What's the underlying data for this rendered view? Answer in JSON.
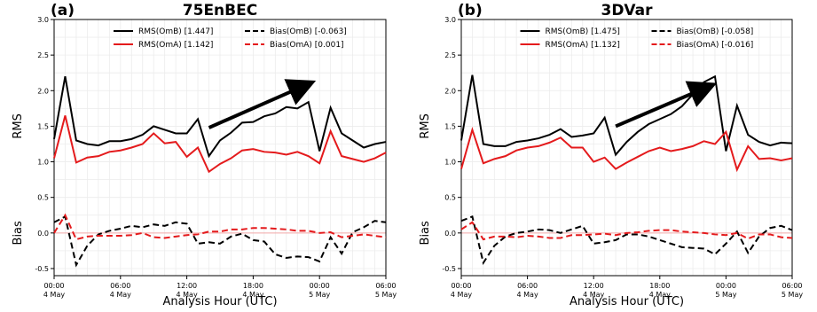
{
  "chart_data": [
    {
      "type": "line",
      "panel_label": "(a)",
      "title": "75EnBEC",
      "xlabel": "Analysis Hour (UTC)",
      "ylabel_top": "RMS",
      "ylabel_bottom": "Bias",
      "x_hours": [
        0,
        1,
        2,
        3,
        4,
        5,
        6,
        7,
        8,
        9,
        10,
        11,
        12,
        13,
        14,
        15,
        16,
        17,
        18,
        19,
        20,
        21,
        22,
        23,
        24,
        25,
        26,
        27,
        28,
        29,
        30
      ],
      "xticks": [
        {
          "hour": 0,
          "line1": "00:00",
          "line2": "4 May"
        },
        {
          "hour": 6,
          "line1": "06:00",
          "line2": "4 May"
        },
        {
          "hour": 12,
          "line1": "12:00",
          "line2": "4 May"
        },
        {
          "hour": 18,
          "line1": "18:00",
          "line2": "4 May"
        },
        {
          "hour": 24,
          "line1": "00:00",
          "line2": "5 May"
        },
        {
          "hour": 30,
          "line1": "06:00",
          "line2": "5 May"
        }
      ],
      "yticks": [
        "3.0",
        "2.5",
        "2.0",
        "1.5",
        "1.0",
        "0.5",
        "0.0",
        "-0.5"
      ],
      "ylim": [
        -0.6,
        3.0
      ],
      "grid": true,
      "legend_position": "top",
      "legend": [
        {
          "label": "RMS(OmB) [1.447]",
          "color": "#000000",
          "dashed": false
        },
        {
          "label": "Bias(OmB) [-0.063]",
          "color": "#000000",
          "dashed": true
        },
        {
          "label": "RMS(OmA) [1.142]",
          "color": "#e41a1c",
          "dashed": false
        },
        {
          "label": "Bias(OmA) [0.001]",
          "color": "#e41a1c",
          "dashed": true
        }
      ],
      "series": [
        {
          "name": "RMS(OmB) [1.447]",
          "color": "#000000",
          "dashed": false,
          "values": [
            1.32,
            2.2,
            1.3,
            1.25,
            1.23,
            1.29,
            1.29,
            1.32,
            1.38,
            1.5,
            1.45,
            1.4,
            1.4,
            1.6,
            1.08,
            1.3,
            1.41,
            1.55,
            1.56,
            1.64,
            1.68,
            1.77,
            1.75,
            1.84,
            1.15,
            1.76,
            1.4,
            1.3,
            1.2,
            1.25,
            1.28
          ]
        },
        {
          "name": "RMS(OmA) [1.142]",
          "color": "#e41a1c",
          "dashed": false,
          "values": [
            1.05,
            1.65,
            0.99,
            1.06,
            1.08,
            1.14,
            1.16,
            1.2,
            1.25,
            1.4,
            1.26,
            1.28,
            1.07,
            1.2,
            0.86,
            0.97,
            1.05,
            1.16,
            1.18,
            1.14,
            1.13,
            1.1,
            1.14,
            1.08,
            0.98,
            1.43,
            1.08,
            1.04,
            1.0,
            1.05,
            1.13
          ]
        },
        {
          "name": "Bias(OmB) [-0.063]",
          "color": "#000000",
          "dashed": true,
          "values": [
            0.15,
            0.23,
            -0.45,
            -0.18,
            -0.02,
            0.03,
            0.06,
            0.1,
            0.08,
            0.12,
            0.1,
            0.15,
            0.13,
            -0.15,
            -0.13,
            -0.15,
            -0.05,
            -0.01,
            -0.1,
            -0.12,
            -0.3,
            -0.35,
            -0.33,
            -0.34,
            -0.4,
            -0.06,
            -0.29,
            0.01,
            0.08,
            0.17,
            0.15
          ]
        },
        {
          "name": "Bias(OmA) [0.001]",
          "color": "#e41a1c",
          "dashed": true,
          "values": [
            0.0,
            0.25,
            -0.09,
            -0.05,
            -0.04,
            -0.04,
            -0.04,
            -0.03,
            0.0,
            -0.06,
            -0.07,
            -0.05,
            -0.03,
            -0.02,
            0.02,
            0.02,
            0.05,
            0.05,
            0.07,
            0.07,
            0.06,
            0.05,
            0.03,
            0.03,
            0.0,
            0.01,
            -0.06,
            -0.04,
            -0.02,
            -0.04,
            -0.06
          ]
        }
      ],
      "annotation_arrow": {
        "from": {
          "hour": 14,
          "value": 1.48
        },
        "to": {
          "hour": 22.5,
          "value": 2.06
        }
      }
    },
    {
      "type": "line",
      "panel_label": "(b)",
      "title": "3DVar",
      "xlabel": "Analysis Hour (UTC)",
      "ylabel_top": "RMS",
      "ylabel_bottom": "Bias",
      "x_hours": [
        0,
        1,
        2,
        3,
        4,
        5,
        6,
        7,
        8,
        9,
        10,
        11,
        12,
        13,
        14,
        15,
        16,
        17,
        18,
        19,
        20,
        21,
        22,
        23,
        24,
        25,
        26,
        27,
        28,
        29,
        30
      ],
      "xticks": [
        {
          "hour": 0,
          "line1": "00:00",
          "line2": "4 May"
        },
        {
          "hour": 6,
          "line1": "06:00",
          "line2": "4 May"
        },
        {
          "hour": 12,
          "line1": "12:00",
          "line2": "4 May"
        },
        {
          "hour": 18,
          "line1": "18:00",
          "line2": "4 May"
        },
        {
          "hour": 24,
          "line1": "00:00",
          "line2": "5 May"
        },
        {
          "hour": 30,
          "line1": "06:00",
          "line2": "5 May"
        }
      ],
      "yticks": [
        "3.0",
        "2.5",
        "2.0",
        "1.5",
        "1.0",
        "0.5",
        "0.0",
        "-0.5"
      ],
      "ylim": [
        -0.6,
        3.0
      ],
      "grid": true,
      "legend_position": "top",
      "legend": [
        {
          "label": "RMS(OmB) [1.475]",
          "color": "#000000",
          "dashed": false
        },
        {
          "label": "Bias(OmB) [-0.058]",
          "color": "#000000",
          "dashed": true
        },
        {
          "label": "RMS(OmA) [1.132]",
          "color": "#e41a1c",
          "dashed": false
        },
        {
          "label": "Bias(OmA) [-0.016]",
          "color": "#e41a1c",
          "dashed": true
        }
      ],
      "series": [
        {
          "name": "RMS(OmB) [1.475]",
          "color": "#000000",
          "dashed": false,
          "values": [
            1.3,
            2.22,
            1.25,
            1.22,
            1.22,
            1.28,
            1.3,
            1.33,
            1.38,
            1.46,
            1.35,
            1.37,
            1.4,
            1.62,
            1.1,
            1.28,
            1.42,
            1.53,
            1.6,
            1.67,
            1.78,
            1.95,
            2.12,
            2.2,
            1.15,
            1.79,
            1.38,
            1.28,
            1.23,
            1.27,
            1.26
          ]
        },
        {
          "name": "RMS(OmA) [1.132]",
          "color": "#e41a1c",
          "dashed": false,
          "values": [
            0.9,
            1.45,
            0.98,
            1.04,
            1.08,
            1.16,
            1.2,
            1.22,
            1.27,
            1.34,
            1.2,
            1.2,
            1.0,
            1.06,
            0.9,
            0.99,
            1.07,
            1.15,
            1.2,
            1.15,
            1.18,
            1.22,
            1.29,
            1.25,
            1.42,
            0.89,
            1.22,
            1.04,
            1.05,
            1.02,
            1.05
          ]
        },
        {
          "name": "Bias(OmB) [-0.058]",
          "color": "#000000",
          "dashed": true,
          "values": [
            0.17,
            0.23,
            -0.42,
            -0.18,
            -0.05,
            0.0,
            0.02,
            0.05,
            0.04,
            0.0,
            0.05,
            0.1,
            -0.15,
            -0.13,
            -0.1,
            -0.02,
            -0.02,
            -0.05,
            -0.1,
            -0.15,
            -0.2,
            -0.21,
            -0.22,
            -0.3,
            -0.15,
            0.02,
            -0.28,
            -0.05,
            0.07,
            0.1,
            0.04
          ]
        },
        {
          "name": "Bias(OmA) [-0.016]",
          "color": "#e41a1c",
          "dashed": true,
          "values": [
            0.05,
            0.15,
            -0.09,
            -0.05,
            -0.05,
            -0.06,
            -0.04,
            -0.05,
            -0.07,
            -0.07,
            -0.03,
            -0.03,
            -0.02,
            -0.01,
            -0.03,
            0.0,
            0.01,
            0.03,
            0.04,
            0.04,
            0.02,
            0.01,
            0.0,
            -0.02,
            -0.03,
            0.0,
            -0.08,
            -0.02,
            -0.02,
            -0.06,
            -0.07
          ]
        }
      ],
      "annotation_arrow": {
        "from": {
          "hour": 14,
          "value": 1.5
        },
        "to": {
          "hour": 22,
          "value": 2.03
        }
      }
    }
  ]
}
